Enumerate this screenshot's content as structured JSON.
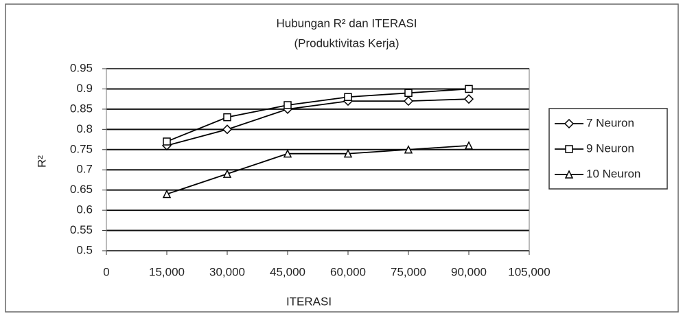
{
  "chart_data": {
    "type": "line",
    "title": "Hubungan R² dan ITERASI",
    "subtitle": "(Produktivitas Kerja)",
    "x_label": "ITERASI",
    "y_label": "R²",
    "x": [
      15000,
      30000,
      45000,
      60000,
      75000,
      90000
    ],
    "series": [
      {
        "name": "7 Neuron",
        "color": "#000000",
        "marker": "diamond",
        "values": [
          0.76,
          0.8,
          0.85,
          0.87,
          0.87,
          0.875
        ]
      },
      {
        "name": "9 Neuron",
        "color": "#000000",
        "marker": "square",
        "values": [
          0.77,
          0.83,
          0.86,
          0.88,
          0.89,
          0.9
        ]
      },
      {
        "name": "10 Neuron",
        "color": "#000000",
        "marker": "triangle",
        "values": [
          0.64,
          0.69,
          0.74,
          0.74,
          0.75,
          0.76
        ]
      }
    ],
    "xlim": [
      0,
      105000
    ],
    "xticks": [
      0,
      {
        "value": 15000,
        "label": "15,000"
      },
      {
        "value": 30000,
        "label": "30,000"
      },
      {
        "value": 45000,
        "label": "45,000"
      },
      {
        "value": 60000,
        "label": "60,000"
      },
      {
        "value": 75000,
        "label": "75,000"
      },
      {
        "value": 90000,
        "label": "90,000"
      },
      {
        "value": 105000,
        "label": "105,000"
      }
    ],
    "ylim": [
      0.5,
      0.95
    ],
    "yticks": [
      0.5,
      0.55,
      0.6,
      0.65,
      0.7,
      0.75,
      0.8,
      0.85,
      0.9,
      0.95
    ],
    "grid": true,
    "legend": "right"
  }
}
